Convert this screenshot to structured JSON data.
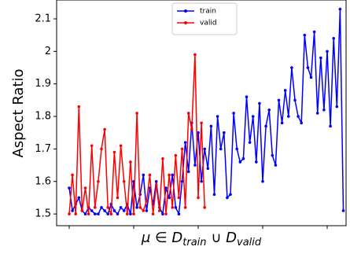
{
  "chart_data": {
    "type": "line",
    "ylabel": "Aspect Ratio",
    "xlabel": [
      "μ ∈ D",
      "train",
      " ∪ D",
      "valid"
    ],
    "xlim": [
      -3.9,
      85.85
    ],
    "xticks": [
      0,
      20,
      40,
      60,
      80
    ],
    "ylim": [
      1.464,
      2.158
    ],
    "yticks": [
      1.5,
      1.6,
      1.7,
      1.8,
      1.9,
      2.0,
      2.1
    ],
    "legend": "upper center",
    "grid": false,
    "series": [
      {
        "name": "train",
        "color": "#0000ff",
        "x": [
          0,
          1,
          2,
          3,
          4,
          5,
          6,
          7,
          8,
          9,
          10,
          11,
          12,
          13,
          14,
          15,
          16,
          17,
          18,
          19,
          20,
          21,
          22,
          23,
          24,
          25,
          26,
          27,
          28,
          29,
          30,
          31,
          32,
          33,
          34,
          35,
          36,
          37,
          38,
          39,
          40,
          41,
          42,
          43,
          44,
          45,
          46,
          47,
          48,
          49,
          50,
          51,
          52,
          53,
          54,
          55,
          56,
          57,
          58,
          59,
          60,
          61,
          62,
          63,
          64,
          65,
          66,
          67,
          68,
          69,
          70,
          71,
          72,
          73,
          74,
          75,
          76,
          77,
          78,
          79,
          80,
          81,
          82,
          83,
          84,
          85
        ],
        "values": [
          1.58,
          1.51,
          1.53,
          1.55,
          1.51,
          1.5,
          1.52,
          1.51,
          1.5,
          1.5,
          1.52,
          1.51,
          1.5,
          1.53,
          1.51,
          1.5,
          1.52,
          1.51,
          1.53,
          1.5,
          1.6,
          1.52,
          1.56,
          1.62,
          1.51,
          1.58,
          1.53,
          1.6,
          1.52,
          1.5,
          1.58,
          1.55,
          1.62,
          1.52,
          1.5,
          1.6,
          1.72,
          1.63,
          1.78,
          1.65,
          1.75,
          1.6,
          1.7,
          1.64,
          1.77,
          1.56,
          1.8,
          1.7,
          1.75,
          1.55,
          1.56,
          1.81,
          1.7,
          1.66,
          1.67,
          1.86,
          1.72,
          1.8,
          1.66,
          1.84,
          1.6,
          1.77,
          1.82,
          1.68,
          1.65,
          1.85,
          1.78,
          1.88,
          1.8,
          1.95,
          1.85,
          1.8,
          1.78,
          2.05,
          1.95,
          1.92,
          2.06,
          1.81,
          1.98,
          1.82,
          2.0,
          1.77,
          2.04,
          1.83,
          2.13,
          1.51
        ]
      },
      {
        "name": "valid",
        "color": "#ff0000",
        "x": [
          0,
          1,
          2,
          3,
          4,
          5,
          6,
          7,
          8,
          9,
          10,
          11,
          12,
          13,
          14,
          15,
          16,
          17,
          18,
          19,
          20,
          21,
          22,
          23,
          24,
          25,
          26,
          27,
          28,
          29,
          30,
          31,
          32,
          33,
          34,
          35,
          36,
          37,
          38,
          39,
          40,
          41,
          42
        ],
        "values": [
          1.5,
          1.62,
          1.5,
          1.83,
          1.51,
          1.58,
          1.5,
          1.71,
          1.52,
          1.6,
          1.7,
          1.76,
          1.52,
          1.5,
          1.69,
          1.55,
          1.71,
          1.6,
          1.5,
          1.66,
          1.5,
          1.81,
          1.52,
          1.51,
          1.54,
          1.62,
          1.5,
          1.59,
          1.51,
          1.67,
          1.5,
          1.62,
          1.52,
          1.68,
          1.55,
          1.7,
          1.52,
          1.81,
          1.76,
          1.99,
          1.55,
          1.78,
          1.52
        ]
      }
    ]
  }
}
